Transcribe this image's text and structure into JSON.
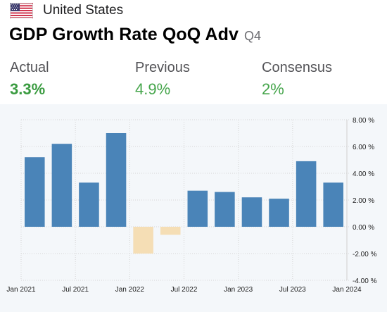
{
  "header": {
    "country": "United States",
    "flag_icon": "us-flag-icon"
  },
  "indicator": {
    "title": "GDP Growth Rate QoQ Adv",
    "period": "Q4"
  },
  "stats": {
    "actual": {
      "label": "Actual",
      "value": "3.3%"
    },
    "previous": {
      "label": "Previous",
      "value": "4.9%"
    },
    "consensus": {
      "label": "Consensus",
      "value": "2%"
    }
  },
  "colors": {
    "positive_bar": "#4a84b8",
    "negative_bar": "#f5deb5",
    "value_green": "#3a9b40"
  },
  "chart_data": {
    "type": "bar",
    "categories": [
      "2021 Q1",
      "2021 Q2",
      "2021 Q3",
      "2021 Q4",
      "2022 Q1",
      "2022 Q2",
      "2022 Q3",
      "2022 Q4",
      "2023 Q1",
      "2023 Q2",
      "2023 Q3",
      "2023 Q4"
    ],
    "values": [
      5.2,
      6.2,
      3.3,
      7.0,
      -2.0,
      -0.6,
      2.7,
      2.6,
      2.2,
      2.1,
      4.9,
      3.3
    ],
    "ylim": [
      -4,
      8
    ],
    "y_ticks": [
      8,
      6,
      4,
      2,
      0,
      -2,
      -4
    ],
    "y_tick_labels": [
      "8.00 %",
      "6.00 %",
      "4.00 %",
      "2.00 %",
      "0.00 %",
      "-2.00 %",
      "-4.00 %"
    ],
    "x_tick_labels": [
      "Jan 2021",
      "Jul 2021",
      "Jan 2022",
      "Jul 2022",
      "Jan 2023",
      "Jul 2023",
      "Jan 2024"
    ],
    "x_tick_positions": [
      0,
      2,
      4,
      6,
      8,
      10,
      12
    ],
    "y_axis_side": "right",
    "grid": true
  }
}
